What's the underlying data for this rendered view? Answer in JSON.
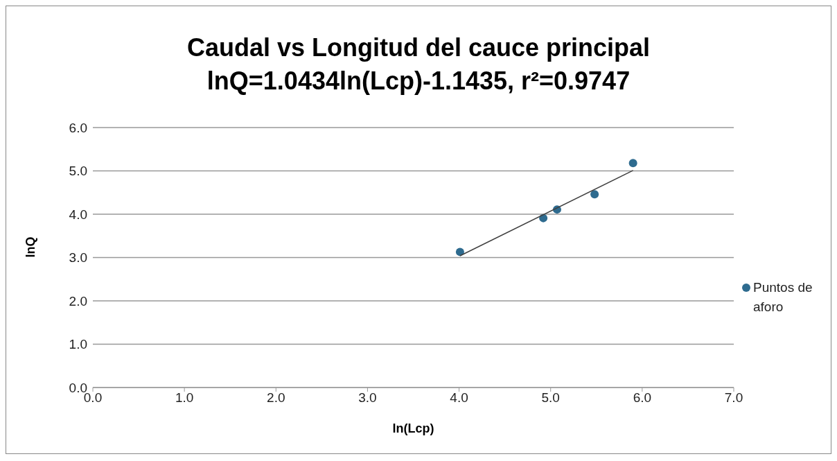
{
  "chart_data": {
    "type": "scatter",
    "title": "Caudal vs Longitud del cauce principal",
    "subtitle": "lnQ=1.0434ln(Lcp)-1.1435, r²=0.9747",
    "xlabel": "ln(Lcp)",
    "ylabel": "lnQ",
    "series": [
      {
        "name": "Puntos de aforo",
        "color": "#2e6b8f",
        "marker": "circle",
        "x": [
          4.01,
          4.92,
          5.07,
          5.48,
          5.9
        ],
        "values": [
          3.13,
          3.91,
          4.11,
          4.46,
          5.18
        ]
      },
      {
        "type": "line",
        "color": "#404040",
        "marker": "none",
        "x": [
          4.01,
          5.9
        ],
        "values": [
          3.04,
          5.01
        ]
      }
    ],
    "xlim": [
      0,
      7
    ],
    "xticks": [
      {
        "value": 0,
        "label": "0.0"
      },
      {
        "value": 1,
        "label": "1.0"
      },
      {
        "value": 2,
        "label": "2.0"
      },
      {
        "value": 3,
        "label": "3.0"
      },
      {
        "value": 4,
        "label": "4.0"
      },
      {
        "value": 5,
        "label": "5.0"
      },
      {
        "value": 6,
        "label": "6.0"
      },
      {
        "value": 7,
        "label": "7.0"
      }
    ],
    "ylim": [
      0,
      6
    ],
    "yticks": [
      {
        "value": 0,
        "label": "0.0"
      },
      {
        "value": 1,
        "label": "1.0"
      },
      {
        "value": 2,
        "label": "2.0"
      },
      {
        "value": 3,
        "label": "3.0"
      },
      {
        "value": 4,
        "label": "4.0"
      },
      {
        "value": 5,
        "label": "5.0"
      },
      {
        "value": 6,
        "label": "6.0"
      }
    ],
    "grid": "y",
    "legend": "right"
  }
}
